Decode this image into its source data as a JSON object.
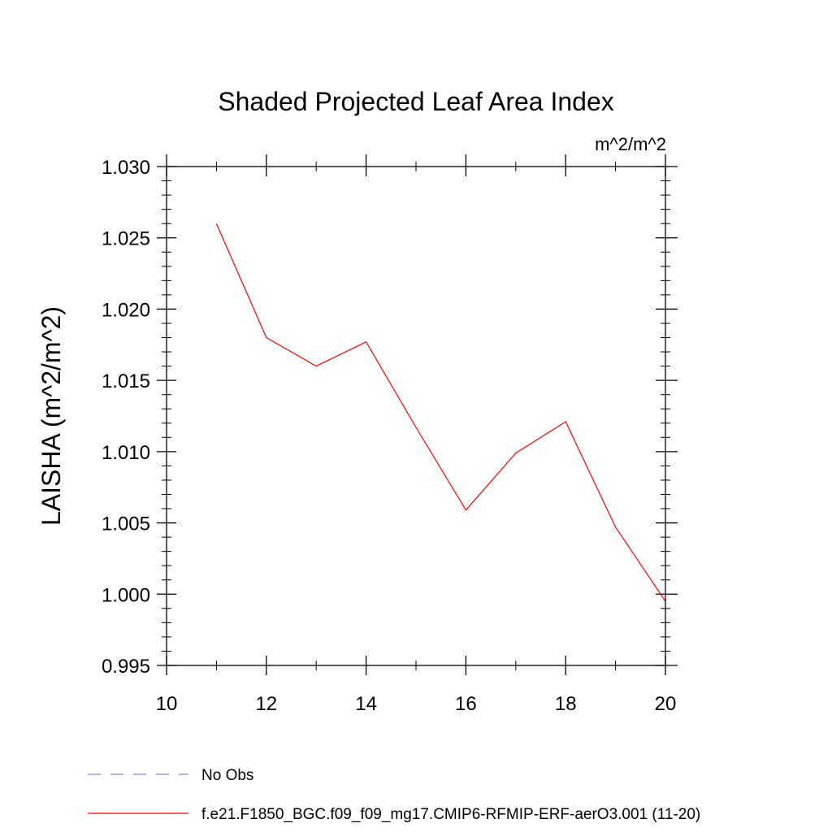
{
  "chart_data": {
    "type": "line",
    "title": "Shaded Projected Leaf Area Index",
    "units": "m^2/m^2",
    "ylabel": "LAISHA  (m^2/m^2)",
    "xlabel": "",
    "xlim": [
      10,
      20
    ],
    "ylim": [
      0.995,
      1.03
    ],
    "xticks": [
      10,
      12,
      14,
      16,
      18,
      20
    ],
    "yticks": [
      0.995,
      1.0,
      1.005,
      1.01,
      1.015,
      1.02,
      1.025,
      1.03
    ],
    "ytick_labels": [
      "0.995",
      "1.000",
      "1.005",
      "1.010",
      "1.015",
      "1.020",
      "1.025",
      "1.030"
    ],
    "series": [
      {
        "name": "f.e21.F1850_BGC.f09_f09_mg17.CMIP6-RFMIP-ERF-aerO3.001 (11-20)",
        "color": "#ff0000",
        "dash": "solid",
        "x": [
          11,
          12,
          13,
          14,
          15,
          16,
          17,
          18,
          19,
          20
        ],
        "y": [
          1.026,
          1.018,
          1.016,
          1.0177,
          1.0117,
          1.0059,
          1.0099,
          1.0121,
          1.0047,
          0.9995
        ]
      }
    ],
    "legend": [
      {
        "label": "No Obs",
        "color": "#8c7fc0",
        "dash": "dashed"
      },
      {
        "label": "f.e21.F1850_BGC.f09_f09_mg17.CMIP6-RFMIP-ERF-aerO3.001 (11-20)",
        "color": "#ff0000",
        "dash": "solid"
      }
    ],
    "legend_position": "bottom-left"
  }
}
